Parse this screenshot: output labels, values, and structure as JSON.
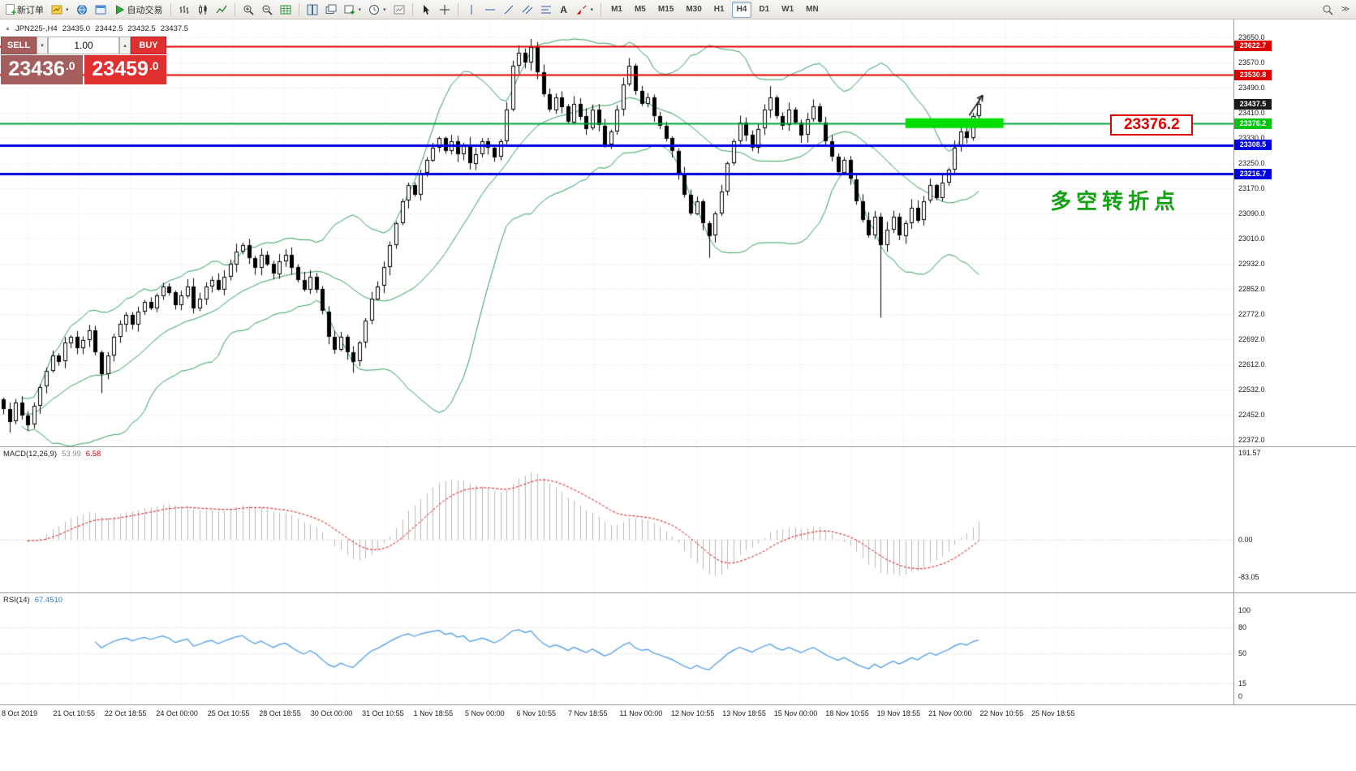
{
  "toolbar": {
    "items": [
      {
        "name": "new-order-button",
        "icon": "new-order",
        "label": "新订单"
      },
      {
        "name": "new-chart-button",
        "icon": "chart-yellow",
        "caret": true
      },
      {
        "name": "profiles-button",
        "icon": "globe-blue"
      },
      {
        "name": "data-window-button",
        "icon": "window-blue"
      },
      {
        "name": "autotrading-button",
        "icon": "play-green",
        "label": "自动交易"
      },
      {
        "sep": true
      },
      {
        "name": "bar-chart-button",
        "icon": "bars"
      },
      {
        "name": "candlestick-chart-button",
        "icon": "candles"
      },
      {
        "name": "line-chart-button",
        "icon": "linechart"
      },
      {
        "sep": true
      },
      {
        "name": "zoom-in-button",
        "icon": "zoom-in"
      },
      {
        "name": "zoom-out-button",
        "icon": "zoom-out"
      },
      {
        "name": "indicators-button",
        "icon": "grid-green"
      },
      {
        "sep": true
      },
      {
        "name": "tile-windows-button",
        "icon": "tile"
      },
      {
        "name": "cascade-windows-button",
        "icon": "cascade"
      },
      {
        "name": "templates-button",
        "icon": "chart-plus",
        "caret": true
      },
      {
        "name": "periods-button",
        "icon": "clock",
        "caret": true
      },
      {
        "name": "refresh-chart-button",
        "icon": "chart-gray"
      },
      {
        "sep": true
      },
      {
        "name": "cursor-button",
        "icon": "pointer"
      },
      {
        "name": "crosshair-button",
        "icon": "crosshair"
      },
      {
        "sep": true
      },
      {
        "name": "vertical-line-button",
        "icon": "vline"
      },
      {
        "name": "horizontal-line-button",
        "icon": "hline"
      },
      {
        "name": "trendline-button",
        "icon": "trendline"
      },
      {
        "name": "channel-button",
        "icon": "channel"
      },
      {
        "name": "fibonacci-button",
        "icon": "fibo"
      },
      {
        "name": "text-button",
        "icon": "textA"
      },
      {
        "name": "arrows-button",
        "icon": "arrows",
        "caret": true
      },
      {
        "sep": true
      }
    ],
    "timeframes": [
      "M1",
      "M5",
      "M15",
      "M30",
      "H1",
      "H4",
      "D1",
      "W1",
      "MN"
    ],
    "active_timeframe": "H4",
    "right_items": [
      {
        "name": "search-button",
        "icon": "search"
      },
      {
        "name": "more-tools-button",
        "icon": "expand"
      }
    ]
  },
  "chart_header": {
    "collapse_icon": "▲",
    "symbol": "JPN225-,H4",
    "open": "23435.0",
    "high": "23442.5",
    "low": "23432.5",
    "close": "23437.5"
  },
  "trade_panel": {
    "sell_label": "SELL",
    "buy_label": "BUY",
    "volume": "1.00",
    "sell_price_big": "23436",
    "sell_price_small": ".0",
    "buy_price_big": "23459",
    "buy_price_small": ".0"
  },
  "price_axis": {
    "labels": [
      "23650.0",
      "23570.0",
      "23490.0",
      "23410.0",
      "23330.0",
      "23250.0",
      "23170.0",
      "23090.0",
      "23010.0",
      "22932.0",
      "22852.0",
      "22772.0",
      "22692.0",
      "22612.0",
      "22532.0",
      "22452.0",
      "22372.0"
    ],
    "current_price": {
      "label": "23437.5",
      "value": 23437.5,
      "color": "#1a1a1a"
    }
  },
  "levels": [
    {
      "value": 23622.7,
      "label": "23622.7",
      "color": "#dd0000",
      "width": 2
    },
    {
      "value": 23530.8,
      "label": "23530.8",
      "color": "#dd0000",
      "width": 2
    },
    {
      "value": 23376.2,
      "label": "23376.2",
      "color": "#00a33c",
      "width": 2,
      "tag_color": "#00c412"
    },
    {
      "value": 23308.5,
      "label": "23308.5",
      "color": "#0000e0",
      "width": 3
    },
    {
      "value": 23216.7,
      "label": "23216.7",
      "color": "#0000e0",
      "width": 3
    }
  ],
  "annotations": {
    "highlight_rect": {
      "index_start": 147,
      "index_end": 163,
      "price_top": 23393,
      "price_bottom": 23362,
      "color": "#00dd00"
    },
    "callout": {
      "text": "23376.2",
      "index_start": 180.4,
      "index_end": 193.9,
      "price_top": 23406,
      "price_bottom": 23337,
      "color": "#dd0000"
    },
    "pivot": {
      "text": "多空转折点",
      "index": 170.6,
      "price": 23180,
      "color": "#14a014"
    },
    "arrow": {
      "from_index": 157.4,
      "from_price": 23402,
      "to_index": 159.6,
      "to_price": 23466,
      "color": "#111111"
    }
  },
  "indicators": {
    "macd": {
      "name": "MACD(12,26,9)",
      "main_value": "53.99",
      "signal_value": "6.58",
      "axis_labels": [
        "191.57",
        "0.00",
        "-83.05"
      ],
      "params": {
        "fast": 12,
        "slow": 26,
        "signal": 9
      }
    },
    "rsi": {
      "name": "RSI(14)",
      "value": "67.4510",
      "axis_labels": [
        "100",
        "80",
        "50",
        "15",
        "0"
      ],
      "levels": [
        80,
        50,
        15
      ],
      "period": 14
    }
  },
  "time_axis": [
    "8 Oct 2019",
    "21 Oct 10:55",
    "22 Oct 18:55",
    "24 Oct 00:00",
    "25 Oct 10:55",
    "28 Oct 18:55",
    "30 Oct 00:00",
    "31 Oct 10:55",
    "1 Nov 18:55",
    "5 Nov 00:00",
    "6 Nov 10:55",
    "7 Nov 18:55",
    "11 Nov 00:00",
    "12 Nov 10:55",
    "13 Nov 18:55",
    "15 Nov 00:00",
    "18 Nov 10:55",
    "19 Nov 18:55",
    "21 Nov 00:00",
    "22 Nov 10:55",
    "25 Nov 18:55"
  ],
  "chart_data": {
    "type": "candlestick",
    "symbol": "JPN225-",
    "timeframe": "H4",
    "current_ohlc": {
      "open": 23435.0,
      "high": 23442.5,
      "low": 23432.5,
      "close": 23437.5
    },
    "y_range": [
      22372,
      23650
    ],
    "open_first": 22500,
    "closes": [
      22470,
      22430,
      22490,
      22450,
      22420,
      22480,
      22540,
      22590,
      22640,
      22620,
      22680,
      22700,
      22665,
      22690,
      22720,
      22650,
      22580,
      22640,
      22700,
      22740,
      22770,
      22740,
      22780,
      22810,
      22790,
      22830,
      22860,
      22840,
      22800,
      22830,
      22860,
      22790,
      22820,
      22860,
      22880,
      22850,
      22890,
      22930,
      22970,
      22990,
      22950,
      22920,
      22960,
      22930,
      22900,
      22940,
      22960,
      22920,
      22880,
      22850,
      22890,
      22850,
      22780,
      22700,
      22660,
      22700,
      22650,
      22620,
      22680,
      22750,
      22820,
      22860,
      22920,
      22990,
      23060,
      23130,
      23180,
      23150,
      23220,
      23260,
      23300,
      23330,
      23290,
      23320,
      23280,
      23310,
      23250,
      23280,
      23320,
      23300,
      23270,
      23320,
      23420,
      23560,
      23600,
      23570,
      23620,
      23540,
      23470,
      23420,
      23460,
      23430,
      23380,
      23440,
      23400,
      23360,
      23420,
      23370,
      23310,
      23350,
      23420,
      23500,
      23560,
      23480,
      23440,
      23460,
      23400,
      23370,
      23330,
      23290,
      23220,
      23150,
      23090,
      23130,
      23060,
      23020,
      23090,
      23160,
      23250,
      23320,
      23380,
      23340,
      23300,
      23360,
      23420,
      23460,
      23400,
      23370,
      23420,
      23380,
      23340,
      23390,
      23430,
      23380,
      23320,
      23270,
      23220,
      23260,
      23200,
      23130,
      23070,
      23020,
      23080,
      22990,
      23040,
      23080,
      23020,
      23060,
      23110,
      23070,
      23130,
      23180,
      23140,
      23190,
      23230,
      23300,
      23350,
      23330,
      23400,
      23437.5
    ],
    "wick_overrides": {
      "1": {
        "low": 22395
      },
      "16": {
        "low": 22520
      },
      "57": {
        "low": 22585
      },
      "86": {
        "high": 23645
      },
      "115": {
        "low": 22950
      },
      "125": {
        "high": 23495
      },
      "143": {
        "low": 22760
      }
    }
  }
}
